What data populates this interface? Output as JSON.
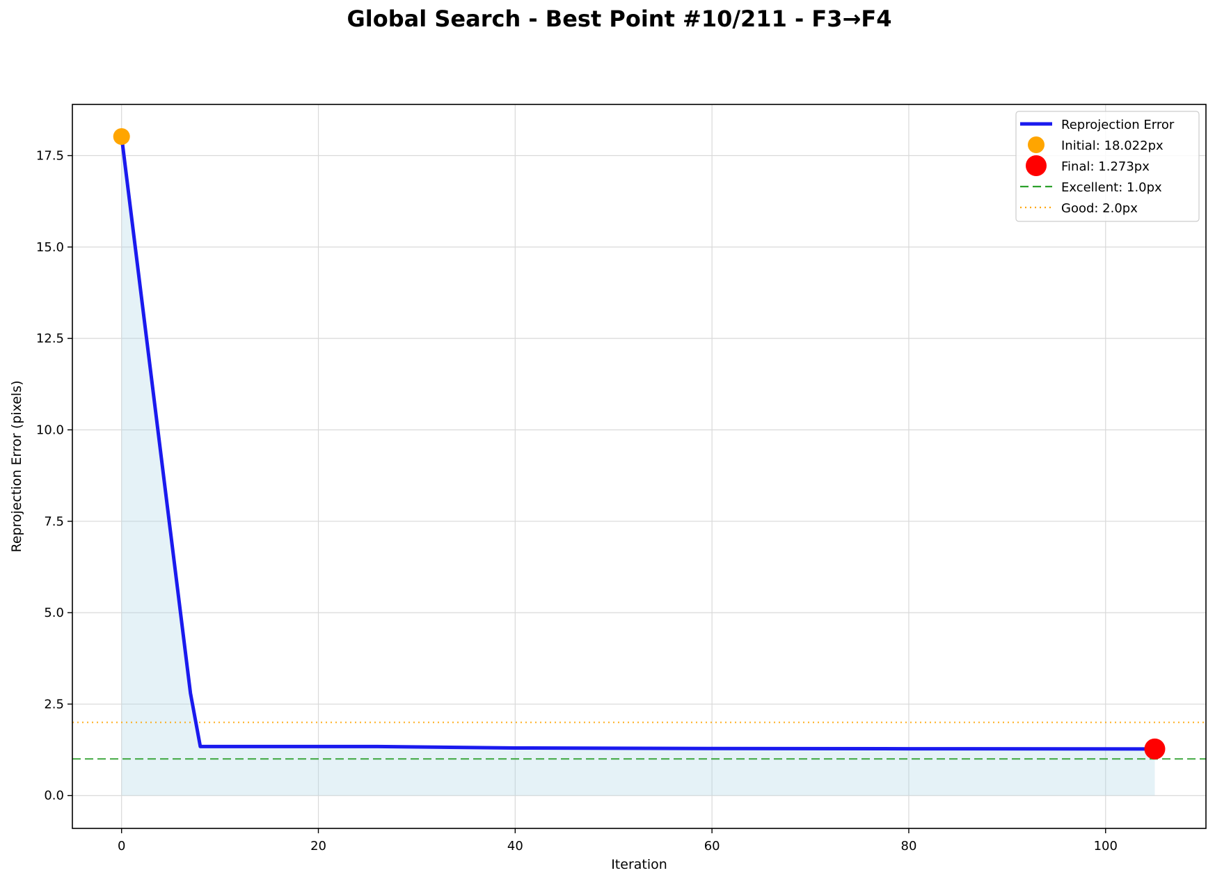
{
  "chart_data": {
    "type": "line",
    "title": "Global Search - Best Point #10/211 - F3→F4",
    "xlabel": "Iteration",
    "ylabel": "Reprojection Error (pixels)",
    "xlim": [
      -5,
      110.2
    ],
    "ylim": [
      -0.9,
      18.9
    ],
    "x_ticks": [
      0,
      20,
      40,
      60,
      80,
      100
    ],
    "x_tick_labels": [
      "0",
      "20",
      "40",
      "60",
      "80",
      "100"
    ],
    "y_ticks": [
      0.0,
      2.5,
      5.0,
      7.5,
      10.0,
      12.5,
      15.0,
      17.5
    ],
    "y_tick_labels": [
      "0.0",
      "2.5",
      "5.0",
      "7.5",
      "10.0",
      "12.5",
      "15.0",
      "17.5"
    ],
    "grid": true,
    "legend_position": "top-right",
    "series": [
      {
        "name": "Reprojection Error",
        "color": "#1a1aee",
        "x": [
          0,
          7,
          8,
          26,
          40,
          60,
          80,
          105
        ],
        "y": [
          18.022,
          2.8,
          1.34,
          1.34,
          1.3,
          1.285,
          1.278,
          1.273
        ],
        "fill_color": "#add8e6"
      }
    ],
    "markers": [
      {
        "name": "Initial: 18.022px",
        "x": 0,
        "y": 18.022,
        "color": "#ffa500"
      },
      {
        "name": "Final: 1.273px",
        "x": 105,
        "y": 1.273,
        "color": "#ff0000"
      }
    ],
    "reference_lines": [
      {
        "name": "Excellent: 1.0px",
        "y": 1.0,
        "color": "#2ca02c",
        "style": "dashed"
      },
      {
        "name": "Good: 2.0px",
        "y": 2.0,
        "color": "#ffa500",
        "style": "dotted"
      }
    ],
    "legend": [
      {
        "label": "Reprojection Error",
        "kind": "line",
        "color": "#1a1aee"
      },
      {
        "label": "Initial: 18.022px",
        "kind": "marker",
        "color": "#ffa500"
      },
      {
        "label": "Final: 1.273px",
        "kind": "marker",
        "color": "#ff0000"
      },
      {
        "label": "Excellent: 1.0px",
        "kind": "dashed",
        "color": "#2ca02c"
      },
      {
        "label": "Good: 2.0px",
        "kind": "dotted",
        "color": "#ffa500"
      }
    ]
  }
}
